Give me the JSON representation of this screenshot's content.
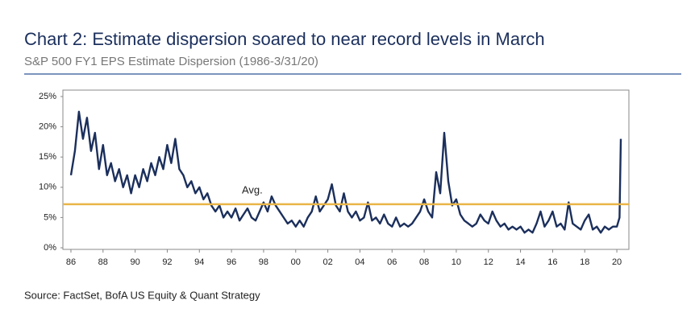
{
  "chart_data": {
    "type": "line",
    "title": "Chart 2: Estimate dispersion soared to near record levels in March",
    "subtitle": "S&P 500 FY1 EPS Estimate Dispersion (1986-3/31/20)",
    "source": "Source: FactSet, BofA US Equity & Quant Strategy",
    "x": [
      1986,
      1986.25,
      1986.5,
      1986.75,
      1987,
      1987.25,
      1987.5,
      1987.75,
      1988,
      1988.25,
      1988.5,
      1988.75,
      1989,
      1989.25,
      1989.5,
      1989.75,
      1990,
      1990.25,
      1990.5,
      1990.75,
      1991,
      1991.25,
      1991.5,
      1991.75,
      1992,
      1992.25,
      1992.5,
      1992.75,
      1993,
      1993.25,
      1993.5,
      1993.75,
      1994,
      1994.25,
      1994.5,
      1994.75,
      1995,
      1995.25,
      1995.5,
      1995.75,
      1996,
      1996.25,
      1996.5,
      1996.75,
      1997,
      1997.25,
      1997.5,
      1997.75,
      1998,
      1998.25,
      1998.5,
      1998.75,
      1999,
      1999.25,
      1999.5,
      1999.75,
      2000,
      2000.25,
      2000.5,
      2000.75,
      2001,
      2001.25,
      2001.5,
      2001.75,
      2002,
      2002.25,
      2002.5,
      2002.75,
      2003,
      2003.25,
      2003.5,
      2003.75,
      2004,
      2004.25,
      2004.5,
      2004.75,
      2005,
      2005.25,
      2005.5,
      2005.75,
      2006,
      2006.25,
      2006.5,
      2006.75,
      2007,
      2007.25,
      2007.5,
      2007.75,
      2008,
      2008.25,
      2008.5,
      2008.75,
      2009,
      2009.25,
      2009.5,
      2009.75,
      2010,
      2010.25,
      2010.5,
      2010.75,
      2011,
      2011.25,
      2011.5,
      2011.75,
      2012,
      2012.25,
      2012.5,
      2012.75,
      2013,
      2013.25,
      2013.5,
      2013.75,
      2014,
      2014.25,
      2014.5,
      2014.75,
      2015,
      2015.25,
      2015.5,
      2015.75,
      2016,
      2016.25,
      2016.5,
      2016.75,
      2017,
      2017.25,
      2017.5,
      2017.75,
      2018,
      2018.25,
      2018.5,
      2018.75,
      2019,
      2019.25,
      2019.5,
      2019.75,
      2020,
      2020.17,
      2020.25
    ],
    "series": [
      {
        "name": "S&P 500 FY1 EPS Estimate Dispersion",
        "color": "#1b2f5c",
        "values": [
          12,
          16,
          22.5,
          18,
          21.5,
          16,
          19,
          13,
          17,
          12,
          14,
          11,
          13,
          10,
          12,
          9,
          12,
          10,
          13,
          11,
          14,
          12,
          15,
          13,
          17,
          14,
          18,
          13,
          12,
          10,
          11,
          9,
          10,
          8,
          9,
          7,
          6,
          7,
          5,
          6,
          5,
          6.5,
          4.5,
          5.5,
          6.5,
          5,
          4.5,
          6,
          7.5,
          6,
          8.5,
          7,
          6,
          5,
          4,
          4.5,
          3.5,
          4.5,
          3.5,
          5,
          6,
          8.5,
          6,
          7,
          8,
          10.5,
          7,
          6,
          9,
          6,
          5,
          6,
          4.5,
          5,
          7.5,
          4.5,
          5,
          4,
          5.5,
          4,
          3.5,
          5,
          3.5,
          4,
          3.5,
          4,
          5,
          6,
          8,
          6,
          5,
          12.5,
          9,
          19,
          11,
          7,
          8,
          5.5,
          4.5,
          4,
          3.5,
          4,
          5.5,
          4.5,
          4,
          6,
          4.5,
          3.5,
          4,
          3,
          3.5,
          3,
          3.5,
          2.5,
          3,
          2.5,
          4,
          6,
          3.5,
          4.5,
          6,
          3.5,
          4,
          3,
          7.5,
          4,
          3.5,
          3,
          4.5,
          5.5,
          3,
          3.5,
          2.5,
          3.5,
          3,
          3.5,
          3.5,
          5,
          18
        ]
      }
    ],
    "avg_line": {
      "value": 7.2,
      "label": "Avg.",
      "color": "#e8b547"
    },
    "xlim": [
      1985.5,
      2020.75
    ],
    "xticks": [
      {
        "value": 1986,
        "label": "86"
      },
      {
        "value": 1988,
        "label": "88"
      },
      {
        "value": 1990,
        "label": "90"
      },
      {
        "value": 1992,
        "label": "92"
      },
      {
        "value": 1994,
        "label": "94"
      },
      {
        "value": 1996,
        "label": "96"
      },
      {
        "value": 1998,
        "label": "98"
      },
      {
        "value": 2000,
        "label": "00"
      },
      {
        "value": 2002,
        "label": "02"
      },
      {
        "value": 2004,
        "label": "04"
      },
      {
        "value": 2006,
        "label": "06"
      },
      {
        "value": 2008,
        "label": "08"
      },
      {
        "value": 2010,
        "label": "10"
      },
      {
        "value": 2012,
        "label": "12"
      },
      {
        "value": 2014,
        "label": "14"
      },
      {
        "value": 2016,
        "label": "16"
      },
      {
        "value": 2018,
        "label": "18"
      },
      {
        "value": 2020,
        "label": "20"
      }
    ],
    "ylim": [
      0,
      25
    ],
    "yticks": [
      {
        "value": 0,
        "label": "0%"
      },
      {
        "value": 5,
        "label": "5%"
      },
      {
        "value": 10,
        "label": "10%"
      },
      {
        "value": 15,
        "label": "15%"
      },
      {
        "value": 20,
        "label": "20%"
      },
      {
        "value": 25,
        "label": "25%"
      }
    ],
    "grid": false
  }
}
